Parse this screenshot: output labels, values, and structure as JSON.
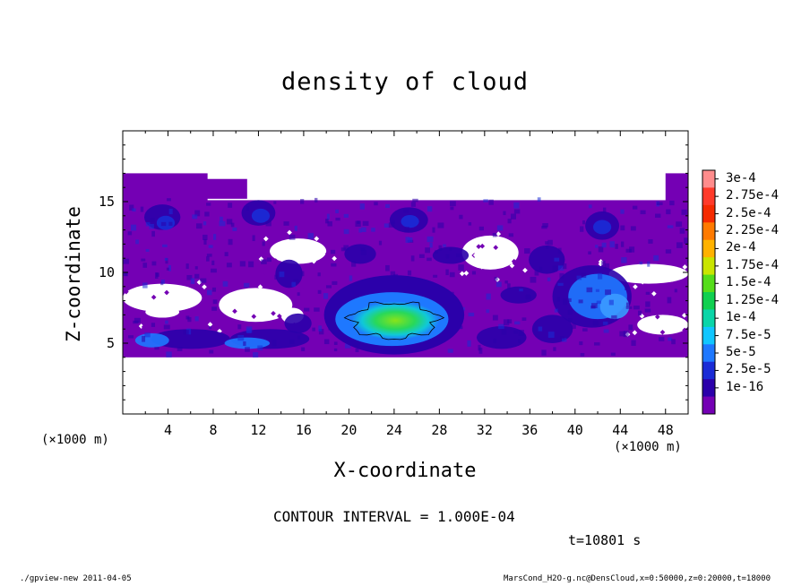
{
  "chart_data": {
    "type": "heatmap",
    "title": "density of cloud",
    "xlabel": "X-coordinate",
    "ylabel": "Z-coordinate",
    "x_unit": "(×1000 m)",
    "xlim": [
      0,
      50
    ],
    "ylim": [
      0,
      20
    ],
    "xticks": [
      4,
      8,
      12,
      16,
      20,
      24,
      28,
      32,
      36,
      40,
      44,
      48
    ],
    "yticks": [
      5,
      10,
      15
    ],
    "colorbar": {
      "levels": [
        "3e-4",
        "2.75e-4",
        "2.5e-4",
        "2.25e-4",
        "2e-4",
        "1.75e-4",
        "1.5e-4",
        "1.25e-4",
        "1e-4",
        "7.5e-5",
        "5e-5",
        "2.5e-5",
        "1e-16"
      ],
      "colors": [
        "#ff8c8c",
        "#ff3a2a",
        "#f52a00",
        "#ff7a00",
        "#ffb200",
        "#c9e500",
        "#55dd1a",
        "#10d050",
        "#0ad5a8",
        "#11c6ff",
        "#1e78ff",
        "#1a2bd6",
        "#2b00aa",
        "#7400b4"
      ]
    },
    "cloud_layer_z": [
      4,
      17
    ],
    "max_region": {
      "x": [
        19,
        29
      ],
      "z": [
        5,
        8
      ],
      "approx_value": "1.25e-4"
    },
    "contour_interval": "1.000E-04",
    "time": "t=10801 s"
  },
  "text": {
    "contour_interval": "CONTOUR INTERVAL = 1.000E-04",
    "time": "t=10801 s",
    "footer_left": "./gpview-new  2011-04-05",
    "footer_right": "MarsCond_H2O-g.nc@DensCloud,x=0:50000,z=0:20000,t=18000",
    "x_unit": "(×1000 m)"
  }
}
